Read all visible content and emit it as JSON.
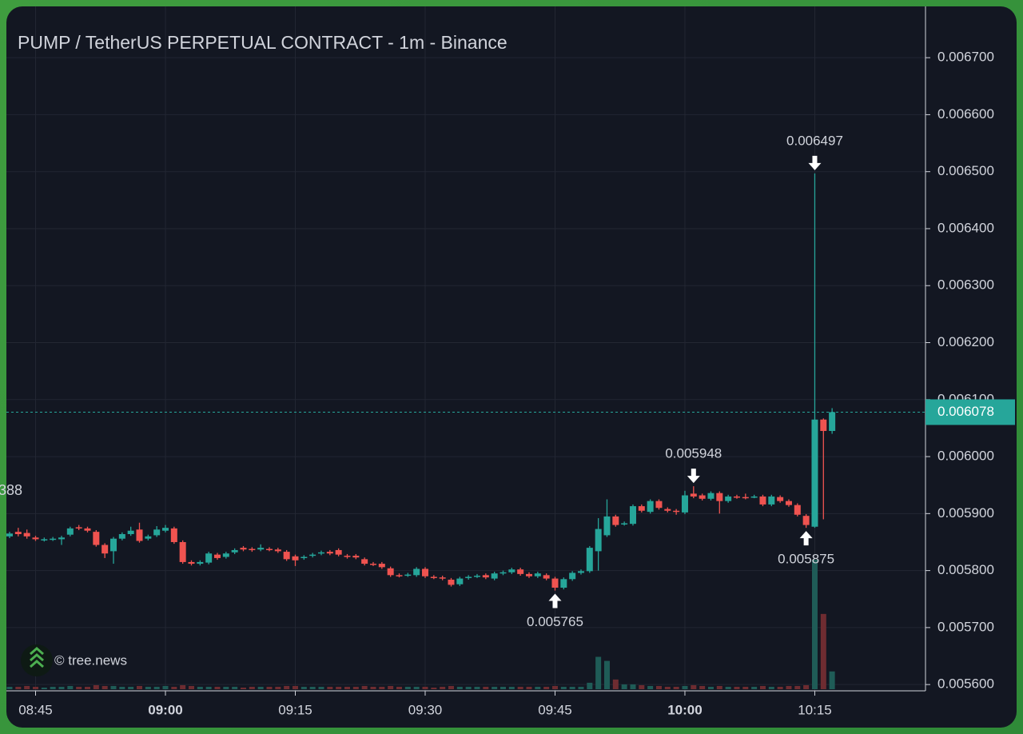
{
  "chart_data": {
    "type": "candlestick",
    "title": "PUMP / TetherUS PERPETUAL CONTRACT - 1m - Binance",
    "watermark": "© tree.news",
    "x": [
      "08:42",
      "08:43",
      "08:44",
      "08:45",
      "08:46",
      "08:47",
      "08:48",
      "08:49",
      "08:50",
      "08:51",
      "08:52",
      "08:53",
      "08:54",
      "08:55",
      "08:56",
      "08:57",
      "08:58",
      "08:59",
      "09:00",
      "09:01",
      "09:02",
      "09:03",
      "09:04",
      "09:05",
      "09:06",
      "09:07",
      "09:08",
      "09:09",
      "09:10",
      "09:11",
      "09:12",
      "09:13",
      "09:14",
      "09:15",
      "09:16",
      "09:17",
      "09:18",
      "09:19",
      "09:20",
      "09:21",
      "09:22",
      "09:23",
      "09:24",
      "09:25",
      "09:26",
      "09:27",
      "09:28",
      "09:29",
      "09:30",
      "09:31",
      "09:32",
      "09:33",
      "09:34",
      "09:35",
      "09:36",
      "09:37",
      "09:38",
      "09:39",
      "09:40",
      "09:41",
      "09:42",
      "09:43",
      "09:44",
      "09:45",
      "09:46",
      "09:47",
      "09:48",
      "09:49",
      "09:50",
      "09:51",
      "09:52",
      "09:53",
      "09:54",
      "09:55",
      "09:56",
      "09:57",
      "09:58",
      "09:59",
      "10:00",
      "10:01",
      "10:02",
      "10:03",
      "10:04",
      "10:05",
      "10:06",
      "10:07",
      "10:08",
      "10:09",
      "10:10",
      "10:11",
      "10:12",
      "10:13",
      "10:14",
      "10:15",
      "10:16",
      "10:17"
    ],
    "open": [
      0.00586,
      0.005868,
      0.005866,
      0.005858,
      0.005854,
      0.005855,
      0.005855,
      0.005863,
      0.005876,
      0.005874,
      0.005868,
      0.005845,
      0.005834,
      0.005856,
      0.005864,
      0.005872,
      0.005856,
      0.005862,
      0.00587,
      0.005874,
      0.00585,
      0.005815,
      0.005812,
      0.005814,
      0.005828,
      0.005824,
      0.005832,
      0.00584,
      0.005838,
      0.005837,
      0.005838,
      0.005837,
      0.005833,
      0.005825,
      0.005822,
      0.005826,
      0.00583,
      0.005833,
      0.005836,
      0.005826,
      0.005826,
      0.00582,
      0.005812,
      0.005812,
      0.005804,
      0.005792,
      0.005792,
      0.005792,
      0.005803,
      0.005789,
      0.005788,
      0.005784,
      0.005776,
      0.005787,
      0.00579,
      0.005792,
      0.005786,
      0.005795,
      0.005797,
      0.005802,
      0.005794,
      0.00579,
      0.005792,
      0.005786,
      0.00577,
      0.005785,
      0.005796,
      0.005799,
      0.005834,
      0.005862,
      0.005895,
      0.005882,
      0.005882,
      0.005913,
      0.005903,
      0.005922,
      0.005908,
      0.005905,
      0.005902,
      0.005935,
      0.005932,
      0.005926,
      0.005936,
      0.005922,
      0.00593,
      0.005929,
      0.00593,
      0.00593,
      0.005916,
      0.005929,
      0.005922,
      0.005915,
      0.005896,
      0.005877,
      0.006065,
      0.006045
    ],
    "high": [
      0.005868,
      0.005875,
      0.005872,
      0.005861,
      0.005858,
      0.005859,
      0.005861,
      0.005877,
      0.00588,
      0.005877,
      0.005871,
      0.005848,
      0.005859,
      0.005867,
      0.005877,
      0.005884,
      0.005863,
      0.005878,
      0.00588,
      0.005877,
      0.005853,
      0.005818,
      0.005818,
      0.005833,
      0.005831,
      0.005833,
      0.005839,
      0.005843,
      0.005841,
      0.005846,
      0.005841,
      0.00584,
      0.005836,
      0.005828,
      0.005827,
      0.005831,
      0.005835,
      0.005836,
      0.005839,
      0.005829,
      0.005829,
      0.005823,
      0.005815,
      0.005815,
      0.005807,
      0.005795,
      0.005796,
      0.005806,
      0.005806,
      0.005792,
      0.005791,
      0.005787,
      0.005789,
      0.005792,
      0.005794,
      0.005795,
      0.005798,
      0.0058,
      0.005805,
      0.005805,
      0.005797,
      0.005798,
      0.005795,
      0.005789,
      0.005788,
      0.005799,
      0.005802,
      0.005843,
      0.005892,
      0.005925,
      0.005898,
      0.005886,
      0.005916,
      0.005916,
      0.005925,
      0.005925,
      0.005911,
      0.005908,
      0.00594,
      0.005948,
      0.005935,
      0.005939,
      0.005939,
      0.005933,
      0.005933,
      0.005935,
      0.005933,
      0.005933,
      0.005933,
      0.005932,
      0.005925,
      0.005918,
      0.005899,
      0.006497,
      0.006067,
      0.006085
    ],
    "low": [
      0.005857,
      0.00586,
      0.005856,
      0.005852,
      0.005851,
      0.005852,
      0.005845,
      0.00586,
      0.005871,
      0.005867,
      0.005842,
      0.005822,
      0.005812,
      0.005853,
      0.005861,
      0.005849,
      0.005853,
      0.005859,
      0.005867,
      0.005847,
      0.005812,
      0.005809,
      0.005809,
      0.005811,
      0.005819,
      0.005821,
      0.005829,
      0.005834,
      0.005833,
      0.005834,
      0.005834,
      0.005831,
      0.005817,
      0.005808,
      0.005819,
      0.005823,
      0.005827,
      0.005827,
      0.005825,
      0.005821,
      0.00582,
      0.005809,
      0.005808,
      0.005803,
      0.005789,
      0.005788,
      0.005789,
      0.005789,
      0.005787,
      0.005785,
      0.005783,
      0.005772,
      0.005773,
      0.005784,
      0.005787,
      0.005785,
      0.005783,
      0.005792,
      0.005794,
      0.005791,
      0.005787,
      0.005787,
      0.005783,
      0.005765,
      0.005767,
      0.005782,
      0.005793,
      0.005796,
      0.0058,
      0.005859,
      0.005877,
      0.005879,
      0.005879,
      0.005902,
      0.0059,
      0.005907,
      0.005902,
      0.005898,
      0.005899,
      0.005927,
      0.005923,
      0.005923,
      0.0059,
      0.005919,
      0.005926,
      0.005925,
      0.005927,
      0.005913,
      0.005913,
      0.005919,
      0.005912,
      0.005895,
      0.005875,
      0.005875,
      0.00589,
      0.00604
    ],
    "close": [
      0.005865,
      0.005864,
      0.00586,
      0.005855,
      0.005855,
      0.005856,
      0.005858,
      0.005874,
      0.005874,
      0.00587,
      0.005845,
      0.00583,
      0.005856,
      0.005864,
      0.00587,
      0.005852,
      0.00586,
      0.005872,
      0.005875,
      0.00585,
      0.005815,
      0.005812,
      0.005815,
      0.00583,
      0.005822,
      0.00583,
      0.005836,
      0.005837,
      0.005836,
      0.00584,
      0.005837,
      0.005834,
      0.00582,
      0.005818,
      0.005824,
      0.005828,
      0.005832,
      0.00583,
      0.005828,
      0.005824,
      0.005823,
      0.005812,
      0.005811,
      0.005806,
      0.005792,
      0.005791,
      0.005793,
      0.005803,
      0.00579,
      0.005788,
      0.005786,
      0.005775,
      0.005786,
      0.005789,
      0.005791,
      0.005788,
      0.005795,
      0.005797,
      0.005802,
      0.005794,
      0.00579,
      0.005795,
      0.005786,
      0.00577,
      0.005785,
      0.005796,
      0.005799,
      0.00584,
      0.005873,
      0.005895,
      0.00588,
      0.005883,
      0.005913,
      0.005905,
      0.005922,
      0.00591,
      0.005905,
      0.005904,
      0.005932,
      0.00593,
      0.005926,
      0.005936,
      0.005922,
      0.00593,
      0.005929,
      0.005928,
      0.00593,
      0.005916,
      0.00593,
      0.005922,
      0.005915,
      0.005898,
      0.00588,
      0.006065,
      0.006045,
      0.006078
    ],
    "volume": [
      3,
      3,
      4,
      3,
      2,
      3,
      3,
      4,
      3,
      3,
      5,
      4,
      4,
      3,
      3,
      4,
      3,
      3,
      4,
      3,
      5,
      4,
      3,
      3,
      3,
      3,
      3,
      2,
      3,
      3,
      3,
      3,
      4,
      4,
      3,
      3,
      3,
      3,
      3,
      3,
      3,
      4,
      3,
      3,
      4,
      3,
      3,
      3,
      3,
      2,
      3,
      4,
      3,
      3,
      3,
      3,
      3,
      3,
      3,
      3,
      3,
      3,
      3,
      4,
      3,
      3,
      3,
      8,
      40,
      35,
      12,
      6,
      6,
      5,
      4,
      4,
      3,
      3,
      4,
      5,
      4,
      3,
      4,
      3,
      3,
      3,
      3,
      4,
      3,
      3,
      4,
      4,
      5,
      160,
      93,
      22
    ],
    "up_color": "#26a69a",
    "down_color": "#ef5350",
    "up_volume_color": "#1f5c57",
    "down_volume_color": "#6e2c31",
    "ylim": [
      0.005589,
      0.00679
    ],
    "yticks": [
      {
        "value": 0.0056,
        "label": "0.005600"
      },
      {
        "value": 0.0057,
        "label": "0.005700"
      },
      {
        "value": 0.0058,
        "label": "0.005800"
      },
      {
        "value": 0.0059,
        "label": "0.005900"
      },
      {
        "value": 0.006,
        "label": "0.006000"
      },
      {
        "value": 0.0061,
        "label": "0.006100"
      },
      {
        "value": 0.0062,
        "label": "0.006200"
      },
      {
        "value": 0.0063,
        "label": "0.006300"
      },
      {
        "value": 0.0064,
        "label": "0.006400"
      },
      {
        "value": 0.0065,
        "label": "0.006500"
      },
      {
        "value": 0.0066,
        "label": "0.006600"
      },
      {
        "value": 0.0067,
        "label": "0.006700"
      }
    ],
    "xticks": [
      "08:45",
      "09:00",
      "09:15",
      "09:30",
      "09:45",
      "10:00",
      "10:15"
    ],
    "grid": true,
    "last_price": 0.006078,
    "annotations": [
      {
        "x": "10:15",
        "value": 0.006497,
        "position": "above"
      },
      {
        "x": "10:01",
        "value": 0.005948,
        "position": "above"
      },
      {
        "x": "10:14",
        "value": 0.005875,
        "position": "below"
      },
      {
        "x": "09:45",
        "value": 0.005765,
        "position": "below"
      }
    ],
    "cropped_label": "388"
  }
}
